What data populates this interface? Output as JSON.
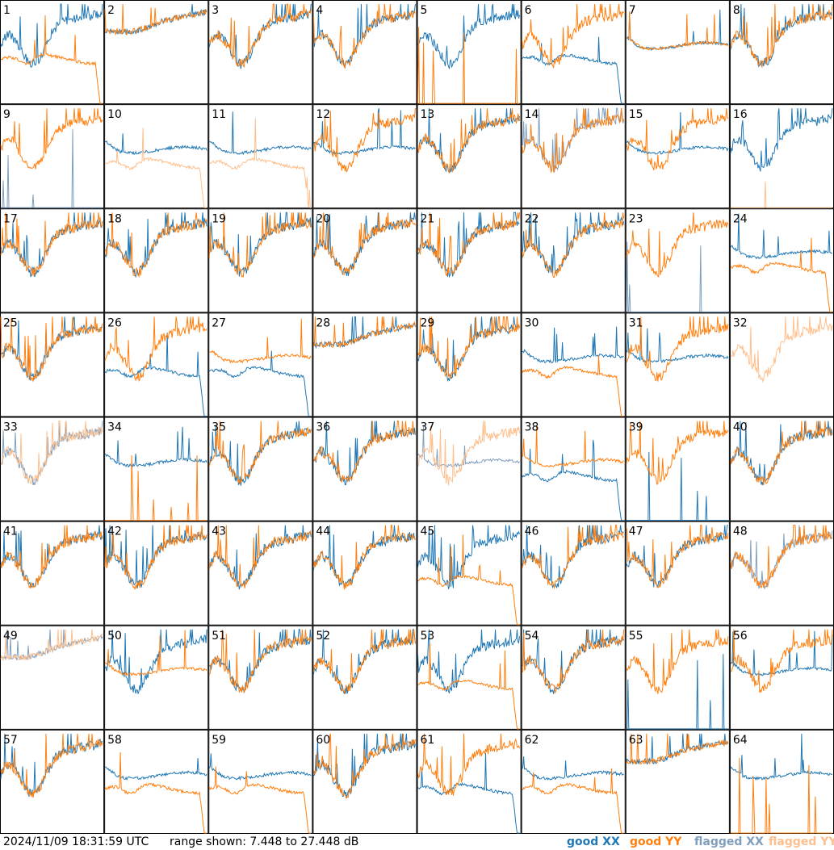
{
  "footer": {
    "timestamp": "2024/11/09 18:31:59 UTC",
    "range_text": "range shown: 7.448 to 27.448 dB"
  },
  "legend": [
    {
      "label": "good XX",
      "color": "#1f77b4"
    },
    {
      "label": "good YY",
      "color": "#ff7f0e"
    },
    {
      "label": "flagged XX",
      "color": "#7f9fbf"
    },
    {
      "label": "flagged YY",
      "color": "#ffbf8c"
    }
  ],
  "chart_data": {
    "type": "line",
    "title": "",
    "ylim": [
      7.448,
      27.448
    ],
    "yunit": "dB",
    "grid": {
      "rows": 8,
      "cols": 8
    },
    "panels": [
      {
        "label": "1",
        "xx": "good",
        "yy": "good",
        "xx_kind": "A",
        "yy_kind": "droop"
      },
      {
        "label": "2",
        "xx": "good",
        "yy": "good",
        "xx_kind": "E",
        "yy_kind": "E"
      },
      {
        "label": "3",
        "xx": "good",
        "yy": "good",
        "xx_kind": "A",
        "yy_kind": "A"
      },
      {
        "label": "4",
        "xx": "good",
        "yy": "good",
        "xx_kind": "A",
        "yy_kind": "A"
      },
      {
        "label": "5",
        "xx": "good",
        "yy": "good",
        "xx_kind": "A",
        "yy_kind": "spikes"
      },
      {
        "label": "6",
        "xx": "good",
        "yy": "good",
        "xx_kind": "droop",
        "yy_kind": "A"
      },
      {
        "label": "7",
        "xx": "good",
        "yy": "good",
        "xx_kind": "C",
        "yy_kind": "C"
      },
      {
        "label": "8",
        "xx": "good",
        "yy": "good",
        "xx_kind": "A",
        "yy_kind": "A"
      },
      {
        "label": "9",
        "xx": "flagged",
        "yy": "good",
        "xx_kind": "spikes",
        "yy_kind": "A"
      },
      {
        "label": "10",
        "xx": "good",
        "yy": "flagged",
        "xx_kind": "C",
        "yy_kind": "droop"
      },
      {
        "label": "11",
        "xx": "good",
        "yy": "flagged",
        "xx_kind": "C",
        "yy_kind": "droop"
      },
      {
        "label": "12",
        "xx": "good",
        "yy": "good",
        "xx_kind": "C",
        "yy_kind": "A"
      },
      {
        "label": "13",
        "xx": "good",
        "yy": "good",
        "xx_kind": "A",
        "yy_kind": "A"
      },
      {
        "label": "14",
        "xx": "flagged",
        "yy": "good",
        "xx_kind": "A",
        "yy_kind": "A"
      },
      {
        "label": "15",
        "xx": "good",
        "yy": "good",
        "xx_kind": "C",
        "yy_kind": "A"
      },
      {
        "label": "16",
        "xx": "good",
        "yy": "flagged",
        "xx_kind": "A",
        "yy_kind": "spikes"
      },
      {
        "label": "17",
        "xx": "good",
        "yy": "good",
        "xx_kind": "A",
        "yy_kind": "A"
      },
      {
        "label": "18",
        "xx": "good",
        "yy": "good",
        "xx_kind": "A",
        "yy_kind": "A"
      },
      {
        "label": "19",
        "xx": "good",
        "yy": "good",
        "xx_kind": "A",
        "yy_kind": "A"
      },
      {
        "label": "20",
        "xx": "good",
        "yy": "good",
        "xx_kind": "A",
        "yy_kind": "A"
      },
      {
        "label": "21",
        "xx": "good",
        "yy": "good",
        "xx_kind": "A",
        "yy_kind": "A"
      },
      {
        "label": "22",
        "xx": "good",
        "yy": "good",
        "xx_kind": "A",
        "yy_kind": "A"
      },
      {
        "label": "23",
        "xx": "flagged",
        "yy": "good",
        "xx_kind": "spikes",
        "yy_kind": "A"
      },
      {
        "label": "24",
        "xx": "good",
        "yy": "good",
        "xx_kind": "C",
        "yy_kind": "droop"
      },
      {
        "label": "25",
        "xx": "good",
        "yy": "good",
        "xx_kind": "A",
        "yy_kind": "A"
      },
      {
        "label": "26",
        "xx": "good",
        "yy": "good",
        "xx_kind": "droop",
        "yy_kind": "A"
      },
      {
        "label": "27",
        "xx": "good",
        "yy": "good",
        "xx_kind": "droop",
        "yy_kind": "C"
      },
      {
        "label": "28",
        "xx": "good",
        "yy": "good",
        "xx_kind": "E",
        "yy_kind": "E"
      },
      {
        "label": "29",
        "xx": "good",
        "yy": "good",
        "xx_kind": "A",
        "yy_kind": "A"
      },
      {
        "label": "30",
        "xx": "good",
        "yy": "good",
        "xx_kind": "C",
        "yy_kind": "droop"
      },
      {
        "label": "31",
        "xx": "good",
        "yy": "good",
        "xx_kind": "C",
        "yy_kind": "A"
      },
      {
        "label": "32",
        "xx": "good",
        "yy": "flagged",
        "xx_kind": "none",
        "yy_kind": "A"
      },
      {
        "label": "33",
        "xx": "flagged",
        "yy": "flagged",
        "xx_kind": "A",
        "yy_kind": "A"
      },
      {
        "label": "34",
        "xx": "good",
        "yy": "good",
        "xx_kind": "C",
        "yy_kind": "spikes"
      },
      {
        "label": "35",
        "xx": "good",
        "yy": "good",
        "xx_kind": "A",
        "yy_kind": "A"
      },
      {
        "label": "36",
        "xx": "good",
        "yy": "good",
        "xx_kind": "A",
        "yy_kind": "A"
      },
      {
        "label": "37",
        "xx": "flagged",
        "yy": "flagged",
        "xx_kind": "C",
        "yy_kind": "A"
      },
      {
        "label": "38",
        "xx": "good",
        "yy": "good",
        "xx_kind": "droop",
        "yy_kind": "C"
      },
      {
        "label": "39",
        "xx": "good",
        "yy": "good",
        "xx_kind": "spikes",
        "yy_kind": "A"
      },
      {
        "label": "40",
        "xx": "good",
        "yy": "good",
        "xx_kind": "A",
        "yy_kind": "A"
      },
      {
        "label": "41",
        "xx": "good",
        "yy": "good",
        "xx_kind": "A",
        "yy_kind": "A"
      },
      {
        "label": "42",
        "xx": "good",
        "yy": "good",
        "xx_kind": "A",
        "yy_kind": "A"
      },
      {
        "label": "43",
        "xx": "good",
        "yy": "good",
        "xx_kind": "A",
        "yy_kind": "A"
      },
      {
        "label": "44",
        "xx": "good",
        "yy": "good",
        "xx_kind": "A",
        "yy_kind": "A"
      },
      {
        "label": "45",
        "xx": "good",
        "yy": "good",
        "xx_kind": "A",
        "yy_kind": "droop"
      },
      {
        "label": "46",
        "xx": "good",
        "yy": "good",
        "xx_kind": "A",
        "yy_kind": "A"
      },
      {
        "label": "47",
        "xx": "good",
        "yy": "good",
        "xx_kind": "A",
        "yy_kind": "A"
      },
      {
        "label": "48",
        "xx": "flagged",
        "yy": "good",
        "xx_kind": "A",
        "yy_kind": "A"
      },
      {
        "label": "49",
        "xx": "flagged",
        "yy": "flagged",
        "xx_kind": "E",
        "yy_kind": "E"
      },
      {
        "label": "50",
        "xx": "good",
        "yy": "good",
        "xx_kind": "A",
        "yy_kind": "C"
      },
      {
        "label": "51",
        "xx": "good",
        "yy": "good",
        "xx_kind": "A",
        "yy_kind": "A"
      },
      {
        "label": "52",
        "xx": "good",
        "yy": "good",
        "xx_kind": "A",
        "yy_kind": "A"
      },
      {
        "label": "53",
        "xx": "good",
        "yy": "good",
        "xx_kind": "A",
        "yy_kind": "droop"
      },
      {
        "label": "54",
        "xx": "good",
        "yy": "good",
        "xx_kind": "A",
        "yy_kind": "A"
      },
      {
        "label": "55",
        "xx": "good",
        "yy": "good",
        "xx_kind": "spikes",
        "yy_kind": "A"
      },
      {
        "label": "56",
        "xx": "good",
        "yy": "good",
        "xx_kind": "C",
        "yy_kind": "A"
      },
      {
        "label": "57",
        "xx": "good",
        "yy": "good",
        "xx_kind": "A",
        "yy_kind": "A"
      },
      {
        "label": "58",
        "xx": "good",
        "yy": "good",
        "xx_kind": "C",
        "yy_kind": "droop"
      },
      {
        "label": "59",
        "xx": "good",
        "yy": "good",
        "xx_kind": "C",
        "yy_kind": "droop"
      },
      {
        "label": "60",
        "xx": "good",
        "yy": "good",
        "xx_kind": "A",
        "yy_kind": "A"
      },
      {
        "label": "61",
        "xx": "good",
        "yy": "good",
        "xx_kind": "droop",
        "yy_kind": "A"
      },
      {
        "label": "62",
        "xx": "good",
        "yy": "good",
        "xx_kind": "C",
        "yy_kind": "droop"
      },
      {
        "label": "63",
        "xx": "good",
        "yy": "good",
        "xx_kind": "E",
        "yy_kind": "E"
      },
      {
        "label": "64",
        "xx": "good",
        "yy": "good",
        "xx_kind": "C",
        "yy_kind": "spikes"
      }
    ]
  }
}
